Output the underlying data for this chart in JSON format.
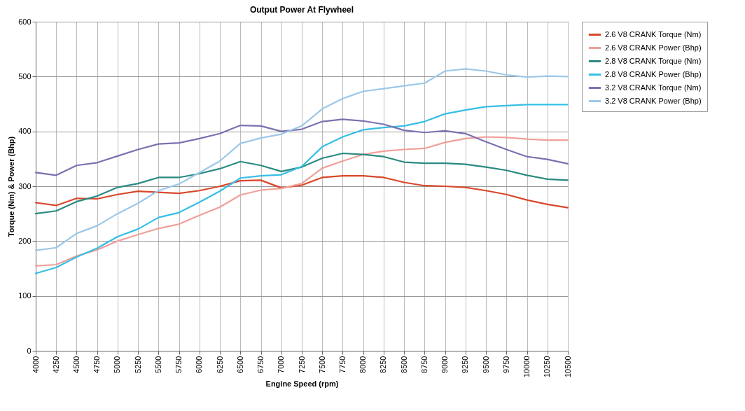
{
  "chart_data": {
    "type": "line",
    "title": "Output Power At Flywheel",
    "xlabel": "Engine Speed (rpm)",
    "ylabel": "Torque (Nm) & Power (Bhp)",
    "x": [
      4000,
      4250,
      4500,
      4750,
      5000,
      5250,
      5500,
      5750,
      6000,
      6250,
      6500,
      6750,
      7000,
      7250,
      7500,
      7750,
      8000,
      8250,
      8500,
      8750,
      9000,
      9250,
      9500,
      9750,
      10000,
      10250,
      10500
    ],
    "series": [
      {
        "name": "2.6 V8 CRANK Torque (Nm)",
        "color": "#d9472b",
        "values": [
          270,
          265,
          278,
          277,
          285,
          291,
          289,
          287,
          292,
          300,
          310,
          311,
          297,
          302,
          316,
          319,
          319,
          316,
          307,
          301,
          300,
          298,
          292,
          285,
          275,
          267,
          261
        ]
      },
      {
        "name": "2.6 V8 CRANK Power (Bhp)",
        "color": "#f0a09a",
        "values": [
          155,
          157,
          173,
          184,
          200,
          212,
          223,
          231,
          247,
          262,
          284,
          293,
          296,
          305,
          333,
          346,
          358,
          364,
          367,
          369,
          380,
          387,
          390,
          389,
          386,
          384,
          384
        ]
      },
      {
        "name": "2.8 V8 CRANK Torque (Nm)",
        "color": "#2a8a80",
        "values": [
          250,
          255,
          272,
          282,
          298,
          305,
          316,
          316,
          323,
          332,
          345,
          338,
          327,
          335,
          351,
          360,
          358,
          354,
          344,
          342,
          342,
          340,
          335,
          329,
          320,
          313,
          311
        ]
      },
      {
        "name": "2.8 V8 CRANK Power (Bhp)",
        "color": "#35bfe6",
        "values": [
          141,
          152,
          171,
          187,
          208,
          222,
          243,
          252,
          271,
          291,
          315,
          319,
          321,
          336,
          372,
          390,
          403,
          407,
          410,
          418,
          432,
          439,
          445,
          447,
          449,
          449,
          449
        ]
      },
      {
        "name": "3.2 V8 CRANK Torque (Nm)",
        "color": "#7a72b0",
        "values": [
          325,
          320,
          338,
          343,
          355,
          367,
          377,
          379,
          387,
          396,
          411,
          410,
          400,
          404,
          418,
          422,
          419,
          413,
          402,
          398,
          401,
          396,
          381,
          367,
          354,
          349,
          341
        ]
      },
      {
        "name": "3.2 V8 CRANK Power (Bhp)",
        "color": "#9cc8e8",
        "values": [
          183,
          188,
          214,
          228,
          250,
          269,
          292,
          304,
          325,
          346,
          378,
          388,
          395,
          410,
          441,
          460,
          473,
          478,
          483,
          488,
          510,
          514,
          510,
          503,
          499,
          501,
          500
        ]
      }
    ],
    "xlim": [
      4000,
      10500
    ],
    "xticks": [
      4000,
      4250,
      4500,
      4750,
      5000,
      5250,
      5500,
      5750,
      6000,
      6250,
      6500,
      6750,
      7000,
      7250,
      7500,
      7750,
      8000,
      8250,
      8500,
      8750,
      9000,
      9250,
      9500,
      9750,
      10000,
      10250,
      10500
    ],
    "ylim": [
      0,
      600
    ],
    "yticks": [
      0,
      100,
      200,
      300,
      400,
      500,
      600
    ],
    "grid": true,
    "legend": "right",
    "marker": "none",
    "line_style": "solid"
  }
}
